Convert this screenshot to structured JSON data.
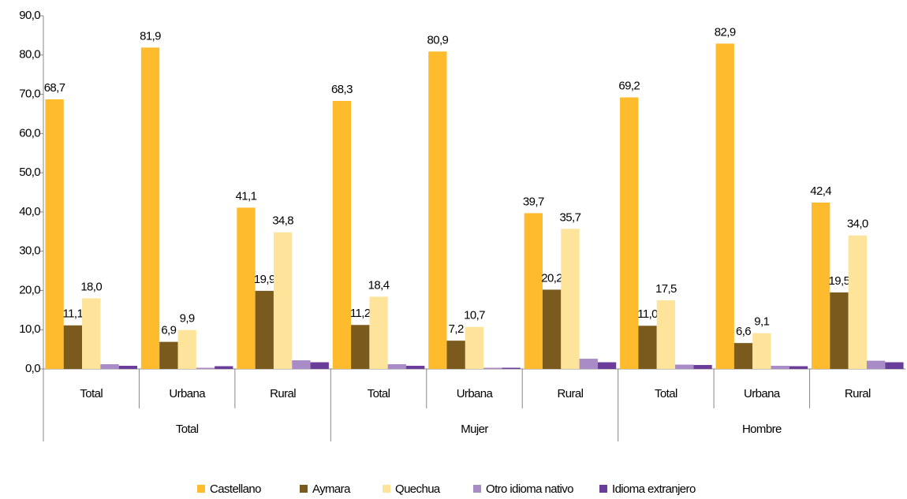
{
  "chart_data": {
    "type": "bar",
    "groups": [
      "Total",
      "Mujer",
      "Hombre"
    ],
    "categories": [
      "Total",
      "Urbana",
      "Rural",
      "Total",
      "Urbana",
      "Rural",
      "Total",
      "Urbana",
      "Rural"
    ],
    "series": [
      {
        "name": "Castellano",
        "color": "#fdbb2d",
        "values": [
          68.7,
          81.9,
          41.1,
          68.3,
          80.9,
          39.7,
          69.2,
          82.9,
          42.4
        ],
        "value_labels": [
          "68,7",
          "81,9",
          "41,1",
          "68,3",
          "80,9",
          "39,7",
          "69,2",
          "82,9",
          "42,4"
        ]
      },
      {
        "name": "Aymara",
        "color": "#7b5a1e",
        "values": [
          11.1,
          6.9,
          19.9,
          11.2,
          7.2,
          20.2,
          11.0,
          6.6,
          19.5
        ],
        "value_labels": [
          "11,1",
          "6,9",
          "19,9",
          "11,2",
          "7,2",
          "20,2",
          "11,0",
          "6,6",
          "19,5"
        ]
      },
      {
        "name": "Quechua",
        "color": "#fee39a",
        "values": [
          18.0,
          9.9,
          34.8,
          18.4,
          10.7,
          35.7,
          17.5,
          9.1,
          34.0
        ],
        "value_labels": [
          "18,0",
          "9,9",
          "34,8",
          "18,4",
          "10,7",
          "35,7",
          "17,5",
          "9,1",
          "34,0"
        ]
      },
      {
        "name": "Otro idioma nativo",
        "color": "#a98bc7",
        "values": [
          1.2,
          0.3,
          2.2,
          1.2,
          0.3,
          2.6,
          1.1,
          0.8,
          2.1
        ]
      },
      {
        "name": "Idioma extranjero",
        "color": "#6a3d9a",
        "values": [
          0.8,
          0.7,
          1.7,
          0.8,
          0.3,
          1.7,
          1.0,
          0.7,
          1.7
        ]
      }
    ],
    "ylim": [
      0,
      90
    ],
    "yticks": [
      {
        "value": 0,
        "label": "0,0"
      },
      {
        "value": 10,
        "label": "10,0"
      },
      {
        "value": 20,
        "label": "20,0"
      },
      {
        "value": 30,
        "label": "30,0"
      },
      {
        "value": 40,
        "label": "40,0"
      },
      {
        "value": 50,
        "label": "50,0"
      },
      {
        "value": 60,
        "label": "60,0"
      },
      {
        "value": 70,
        "label": "70,0"
      },
      {
        "value": 80,
        "label": "80,0"
      },
      {
        "value": 90,
        "label": "90,0"
      }
    ],
    "legend": "bottom"
  }
}
